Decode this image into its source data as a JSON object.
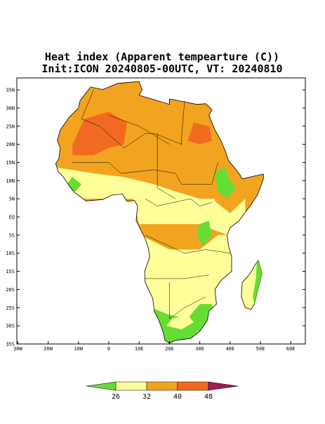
{
  "header": {
    "title": "Heat index (Apparent tempearture (C))",
    "subtitle": "Init:ICON 20240805-00UTC, VT: 20240810"
  },
  "map": {
    "lat_labels": [
      "35N",
      "30N",
      "25N",
      "20N",
      "15N",
      "10N",
      "5N",
      "EQ",
      "5S",
      "10S",
      "15S",
      "20S",
      "25S",
      "30S",
      "35S"
    ],
    "lon_labels": [
      "30W",
      "20W",
      "10W",
      "0",
      "10E",
      "20E",
      "30E",
      "40E",
      "50E",
      "60E"
    ]
  },
  "colorbar": {
    "labels": [
      "26",
      "32",
      "40",
      "48"
    ],
    "colors": [
      "#66dd33",
      "#ffff99",
      "#f2a31f",
      "#f26a22",
      "#a01a5a"
    ]
  }
}
